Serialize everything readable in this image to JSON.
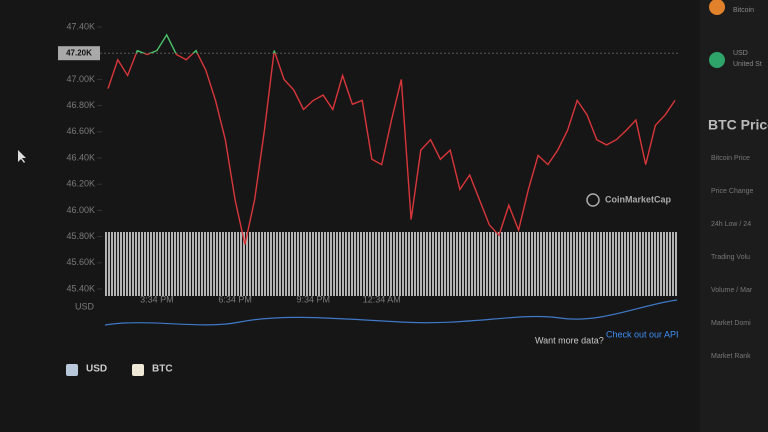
{
  "chart_data": {
    "type": "line",
    "categories": [
      null,
      null,
      null,
      null,
      null,
      "3:34 PM",
      null,
      null,
      null,
      null,
      null,
      null,
      null,
      "6:34 PM",
      null,
      null,
      null,
      null,
      null,
      null,
      null,
      "9:34 PM",
      null,
      null,
      null,
      null,
      null,
      null,
      "12:34 AM",
      null,
      null,
      null,
      null,
      null,
      null,
      null,
      null,
      null,
      null,
      null,
      null,
      null,
      null,
      null,
      null,
      null,
      null,
      null,
      null,
      null,
      null,
      null,
      null,
      null,
      null,
      null,
      null,
      null,
      null
    ],
    "values": [
      46930,
      47150,
      47030,
      47220,
      47190,
      47220,
      47340,
      47190,
      47150,
      47220,
      47070,
      46840,
      46540,
      46080,
      45740,
      46080,
      46610,
      47220,
      47000,
      46920,
      46770,
      46840,
      46880,
      46770,
      47030,
      46810,
      46840,
      46390,
      46350,
      46690,
      47000,
      45930,
      46460,
      46540,
      46390,
      46460,
      46160,
      46270,
      46080,
      45890,
      45810,
      46040,
      45850,
      46160,
      46420,
      46350,
      46460,
      46610,
      46840,
      46730,
      46540,
      46500,
      46540,
      46610,
      46690,
      46350,
      46650,
      46730,
      46840
    ],
    "color": "#d8363a",
    "above_color": "#4cc46c",
    "reference": {
      "value": 47200,
      "label": "47.20K"
    },
    "ylim": [
      45400,
      47400
    ],
    "yticks": [
      {
        "value": 45400,
        "label": "45.40K"
      },
      {
        "value": 45600,
        "label": "45.60K"
      },
      {
        "value": 45800,
        "label": "45.80K"
      },
      {
        "value": 46000,
        "label": "46.00K"
      },
      {
        "value": 46200,
        "label": "46.20K"
      },
      {
        "value": 46400,
        "label": "46.40K"
      },
      {
        "value": 46600,
        "label": "46.60K"
      },
      {
        "value": 46800,
        "label": "46.80K"
      },
      {
        "value": 47000,
        "label": "47.00K"
      },
      {
        "value": 47200,
        "label": "47.20K"
      },
      {
        "value": 47400,
        "label": "47.40K"
      }
    ],
    "x_unit": "USD",
    "legend": [
      {
        "name": "USD",
        "color": "#b9c7db"
      },
      {
        "name": "BTC",
        "color": "#efe8d6"
      }
    ],
    "watermark": "CoinMarketCap",
    "footer_text": "Want more data?",
    "footer_link": "Check out our API"
  },
  "sidebar": {
    "coins": [
      {
        "name": "Bitcoin"
      },
      {
        "name": "USD",
        "sub": "United St"
      }
    ],
    "title": "BTC Price",
    "rows": [
      "Bitcoin Price",
      "Price Change",
      "24h Low / 24",
      "Trading Volu",
      "Volume / Mar",
      "Market Domi",
      "Market Rank"
    ]
  }
}
